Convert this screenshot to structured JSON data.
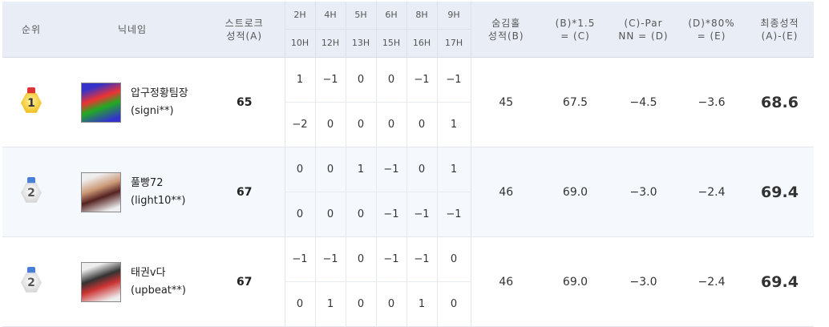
{
  "header": {
    "rank": "순위",
    "nickname": "닉네임",
    "stroke": "스트로크\n성적(A)",
    "stroke_l1": "스트로크",
    "stroke_l2": "성적(A)",
    "holes_top": [
      "2H",
      "4H",
      "5H",
      "6H",
      "8H",
      "9H"
    ],
    "holes_bottom": [
      "10H",
      "12H",
      "13H",
      "15H",
      "16H",
      "17H"
    ],
    "b_l1": "숨김홀",
    "b_l2": "성적(B)",
    "c_l1": "(B)*1.5",
    "c_l2": "= (C)",
    "d_l1": "(C)-Par",
    "d_l2": "NN = (D)",
    "e_l1": "(D)*80%",
    "e_l2": "= (E)",
    "f_l1": "최종성적",
    "f_l2": "(A)-(E)"
  },
  "rows": [
    {
      "rank": "1",
      "medal": "gold",
      "name": "압구정황팀장",
      "id": "(signi**)",
      "stroke": "65",
      "top": [
        "1",
        "−1",
        "0",
        "0",
        "−1",
        "−1"
      ],
      "bottom": [
        "−2",
        "0",
        "0",
        "0",
        "0",
        "1"
      ],
      "b": "45",
      "c": "67.5",
      "d": "−4.5",
      "e": "−3.6",
      "final": "68.6",
      "avatar_colors": [
        "#e33",
        "#2a2",
        "#33c"
      ]
    },
    {
      "rank": "2",
      "medal": "silver",
      "name": "풀빵72",
      "id": "(light10**)",
      "stroke": "67",
      "top": [
        "0",
        "0",
        "1",
        "−1",
        "0",
        "1"
      ],
      "bottom": [
        "0",
        "0",
        "0",
        "−1",
        "−1",
        "−1"
      ],
      "b": "46",
      "c": "69.0",
      "d": "−3.0",
      "e": "−2.4",
      "final": "69.4",
      "avatar_colors": [
        "#c97",
        "#522",
        "#eee"
      ]
    },
    {
      "rank": "2",
      "medal": "silver",
      "name": "태권v다",
      "id": "(upbeat**)",
      "stroke": "67",
      "top": [
        "−1",
        "−1",
        "0",
        "−1",
        "−1",
        "0"
      ],
      "bottom": [
        "0",
        "1",
        "0",
        "0",
        "1",
        "0"
      ],
      "b": "46",
      "c": "69.0",
      "d": "−3.0",
      "e": "−2.4",
      "final": "69.4",
      "avatar_colors": [
        "#333",
        "#c33",
        "#eee"
      ]
    }
  ]
}
